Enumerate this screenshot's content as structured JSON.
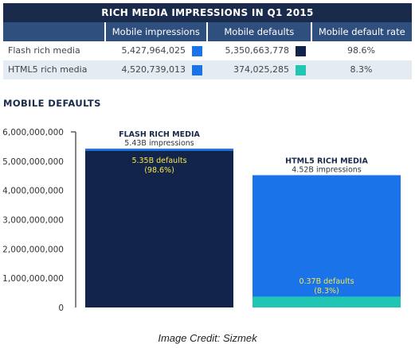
{
  "table": {
    "title": "RICH MEDIA IMPRESSIONS IN Q1 2015",
    "headers": [
      "",
      "Mobile impressions",
      "Mobile defaults",
      "Mobile default rate"
    ],
    "rows": [
      {
        "label": "Flash rich media",
        "impressions": "5,427,964,025",
        "impressions_color": "#1a73e8",
        "defaults": "5,350,663,778",
        "defaults_color": "#13244a",
        "rate": "98.6%"
      },
      {
        "label": "HTML5 rich media",
        "impressions": "4,520,739,013",
        "impressions_color": "#1a73e8",
        "defaults": "374,025,285",
        "defaults_color": "#20c5b3",
        "rate": "8.3%"
      }
    ]
  },
  "section_title": "MOBILE DEFAULTS",
  "credit": "Image Credit: Sizmek",
  "colors": {
    "impressions": "#1a73e8",
    "flash_defaults": "#13244a",
    "html5_defaults": "#20c5b3",
    "highlight": "#f5e84a"
  },
  "chart_data": {
    "type": "bar",
    "title": "MOBILE DEFAULTS",
    "ylim": [
      0,
      6000000000
    ],
    "yticks": [
      0,
      1000000000,
      2000000000,
      3000000000,
      4000000000,
      5000000000,
      6000000000
    ],
    "ytick_labels": [
      "0",
      "1,000,000,000",
      "2,000,000,000",
      "3,000,000,000",
      "4,000,000,000",
      "5,000,000,000",
      "6,000,000,000"
    ],
    "categories": [
      "FLASH RICH MEDIA",
      "HTML5 RICH MEDIA"
    ],
    "series": [
      {
        "name": "Mobile impressions",
        "values": [
          5427964025,
          4520739013
        ]
      },
      {
        "name": "Mobile defaults",
        "values": [
          5350663778,
          374025285
        ]
      }
    ],
    "impression_labels": [
      "5.43B impressions",
      "4.52B impressions"
    ],
    "default_labels": [
      "5.35B defaults",
      "0.37B defaults"
    ],
    "rate_labels": [
      "(98.6%)",
      "(8.3%)"
    ]
  }
}
